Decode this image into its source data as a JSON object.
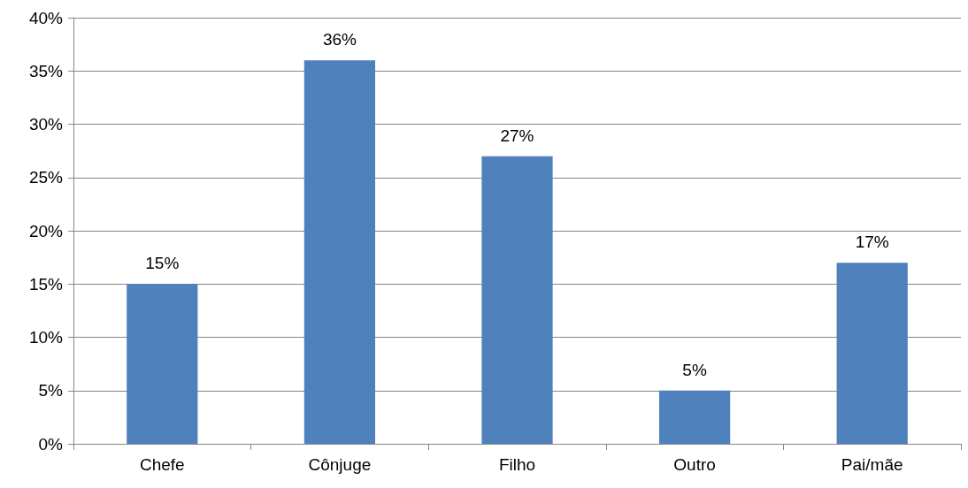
{
  "chart_data": {
    "type": "bar",
    "categories": [
      "Chefe",
      "Cônjuge",
      "Filho",
      "Outro",
      "Pai/mãe"
    ],
    "values": [
      15,
      36,
      27,
      5,
      17
    ],
    "value_labels": [
      "15%",
      "36%",
      "27%",
      "5%",
      "17%"
    ],
    "color": "#4f81bd",
    "ylim": [
      0,
      40
    ],
    "yticks": [
      {
        "value": 0,
        "label": "0%"
      },
      {
        "value": 5,
        "label": "5%"
      },
      {
        "value": 10,
        "label": "10%"
      },
      {
        "value": 15,
        "label": "15%"
      },
      {
        "value": 20,
        "label": "20%"
      },
      {
        "value": 25,
        "label": "25%"
      },
      {
        "value": 30,
        "label": "30%"
      },
      {
        "value": 35,
        "label": "35%"
      },
      {
        "value": 40,
        "label": "40%"
      }
    ],
    "grid": "y"
  }
}
